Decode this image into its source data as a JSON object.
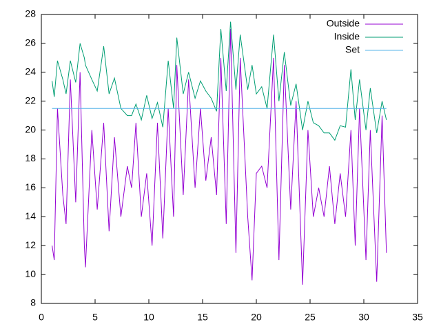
{
  "chart_data": {
    "type": "line",
    "x": [
      1,
      1.2,
      1.5,
      2,
      2.3,
      2.7,
      3.2,
      3.6,
      4,
      4.1,
      4.7,
      5.2,
      5.8,
      6.3,
      6.8,
      7.4,
      8,
      8.4,
      8.8,
      9.3,
      9.8,
      10.3,
      10.8,
      11.3,
      11.8,
      12.3,
      12.6,
      13.2,
      13.7,
      14.3,
      14.8,
      15.3,
      15.8,
      16.3,
      16.7,
      17.2,
      17.6,
      18.1,
      18.5,
      19.2,
      19.6,
      20,
      20.5,
      21,
      21.6,
      22.1,
      22.6,
      23.2,
      23.7,
      24.3,
      24.8,
      25.3,
      25.8,
      26.3,
      26.8,
      27.3,
      27.8,
      28.3,
      28.8,
      29.2,
      29.6,
      30.2,
      30.6,
      31.2,
      31.7,
      32.1
    ],
    "series": [
      {
        "name": "Outside",
        "color": "#9400d3",
        "values": [
          12,
          11,
          21.5,
          15.5,
          13.5,
          23.5,
          15,
          24,
          12,
          10.5,
          20,
          14.5,
          20.5,
          13,
          19.5,
          14,
          17.5,
          16,
          20.5,
          14,
          17,
          12,
          20.5,
          12.5,
          21.5,
          14,
          24.5,
          15.5,
          23.5,
          16,
          21.5,
          16.5,
          19.5,
          15.5,
          25,
          13.5,
          27,
          11.5,
          25,
          14,
          9.6,
          17,
          17.5,
          16,
          25,
          11,
          24.5,
          14.5,
          22,
          9.3,
          20,
          14,
          16,
          14,
          17.5,
          13.5,
          17,
          14,
          20,
          12,
          21.5,
          11,
          20,
          9.5,
          21,
          11.5
        ]
      },
      {
        "name": "Inside",
        "color": "#009e73",
        "values": [
          23.4,
          22.3,
          24.8,
          23.5,
          22.5,
          24.8,
          23.3,
          26,
          25,
          24.5,
          23.5,
          22.7,
          25.8,
          22.5,
          23.6,
          21.5,
          21,
          21,
          21.8,
          20.7,
          22.4,
          20.8,
          21.9,
          20.2,
          24.8,
          21.5,
          26.4,
          22.5,
          24,
          22.2,
          23.4,
          22.7,
          22.2,
          21.3,
          27,
          22.7,
          27.5,
          22.8,
          26.6,
          22.8,
          24.5,
          22.5,
          23,
          21.5,
          26.6,
          22,
          25.4,
          21.7,
          23.2,
          20,
          22,
          20.5,
          20.3,
          19.8,
          19.8,
          19.3,
          20.3,
          20.2,
          24.2,
          20.7,
          23.5,
          20,
          22.9,
          19.8,
          22,
          20.7
        ]
      },
      {
        "name": "Set",
        "color": "#56b4e9",
        "x": [
          1,
          32.1
        ],
        "values": [
          21.5,
          21.5
        ]
      }
    ],
    "xlim": [
      0,
      35
    ],
    "xticks": [
      0,
      5,
      10,
      15,
      20,
      25,
      30,
      35
    ],
    "ylim": [
      8,
      28
    ],
    "yticks": [
      8,
      10,
      12,
      14,
      16,
      18,
      20,
      22,
      24,
      26,
      28
    ],
    "legend": "top-right"
  }
}
